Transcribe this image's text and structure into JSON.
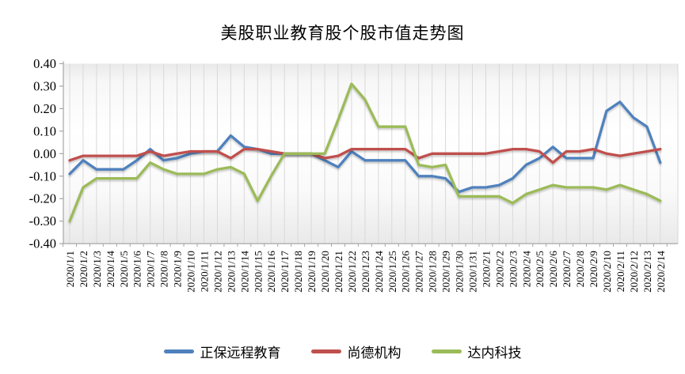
{
  "chart_data": {
    "type": "line",
    "title": "美股职业教育股个股市值走势图",
    "xlabel": "",
    "ylabel": "",
    "ylim": [
      -0.4,
      0.4
    ],
    "ytick_step": 0.1,
    "ytick_labels": [
      "0.40",
      "0.30",
      "0.20",
      "0.10",
      "0.00",
      "-0.10",
      "-0.20",
      "-0.30",
      "-0.40"
    ],
    "grid": "vertical-only",
    "legend_position": "bottom",
    "categories": [
      "2020/1/1",
      "2020/1/2",
      "2020/1/3",
      "2020/1/4",
      "2020/1/5",
      "2020/1/6",
      "2020/1/7",
      "2020/1/8",
      "2020/1/9",
      "2020/1/10",
      "2020/1/11",
      "2020/1/12",
      "2020/1/13",
      "2020/1/14",
      "2020/1/15",
      "2020/1/16",
      "2020/1/17",
      "2020/1/18",
      "2020/1/19",
      "2020/1/20",
      "2020/1/21",
      "2020/1/22",
      "2020/1/23",
      "2020/1/24",
      "2020/1/25",
      "2020/1/26",
      "2020/1/27",
      "2020/1/28",
      "2020/1/29",
      "2020/1/30",
      "2020/1/31",
      "2020/2/1",
      "2020/2/2",
      "2020/2/3",
      "2020/2/4",
      "2020/2/5",
      "2020/2/6",
      "2020/2/7",
      "2020/2/8",
      "2020/2/9",
      "2020/2/10",
      "2020/2/11",
      "2020/2/12",
      "2020/2/13",
      "2020/2/14"
    ],
    "series": [
      {
        "name": "正保远程教育",
        "color": "#4F81BD",
        "values": [
          -0.09,
          -0.03,
          -0.07,
          -0.07,
          -0.07,
          -0.03,
          0.02,
          -0.03,
          -0.02,
          0.0,
          0.01,
          0.01,
          0.08,
          0.03,
          0.02,
          0.0,
          0.0,
          0.0,
          0.0,
          -0.03,
          -0.06,
          0.01,
          -0.03,
          -0.03,
          -0.03,
          -0.03,
          -0.1,
          -0.1,
          -0.11,
          -0.17,
          -0.15,
          -0.15,
          -0.14,
          -0.11,
          -0.05,
          -0.02,
          0.03,
          -0.02,
          -0.02,
          -0.02,
          0.19,
          0.23,
          0.16,
          0.12,
          -0.04
        ]
      },
      {
        "name": "尚德机构",
        "color": "#C0504D",
        "values": [
          -0.03,
          -0.01,
          -0.01,
          -0.01,
          -0.01,
          -0.01,
          0.01,
          -0.01,
          0.0,
          0.01,
          0.01,
          0.01,
          -0.02,
          0.02,
          0.02,
          0.01,
          0.0,
          0.0,
          0.0,
          -0.02,
          -0.01,
          0.02,
          0.02,
          0.02,
          0.02,
          0.02,
          -0.02,
          0.0,
          0.0,
          0.0,
          0.0,
          0.0,
          0.01,
          0.02,
          0.02,
          0.01,
          -0.04,
          0.01,
          0.01,
          0.02,
          0.0,
          -0.01,
          0.0,
          0.01,
          0.02
        ]
      },
      {
        "name": "达内科技",
        "color": "#9BBB59",
        "values": [
          -0.3,
          -0.15,
          -0.11,
          -0.11,
          -0.11,
          -0.11,
          -0.04,
          -0.07,
          -0.09,
          -0.09,
          -0.09,
          -0.07,
          -0.06,
          -0.09,
          -0.21,
          -0.1,
          0.0,
          0.0,
          0.0,
          0.0,
          0.15,
          0.31,
          0.24,
          0.12,
          0.12,
          0.12,
          -0.05,
          -0.06,
          -0.05,
          -0.19,
          -0.19,
          -0.19,
          -0.19,
          -0.22,
          -0.18,
          -0.16,
          -0.14,
          -0.15,
          -0.15,
          -0.15,
          -0.16,
          -0.14,
          -0.16,
          -0.18,
          -0.21
        ]
      }
    ]
  },
  "colors": {
    "axis": "#a6a6a6",
    "gridline": "#d9d9d9",
    "text": "#000000",
    "plot_bg_edge": "#e9e9e9",
    "plot_bg_center": "#ffffff"
  }
}
